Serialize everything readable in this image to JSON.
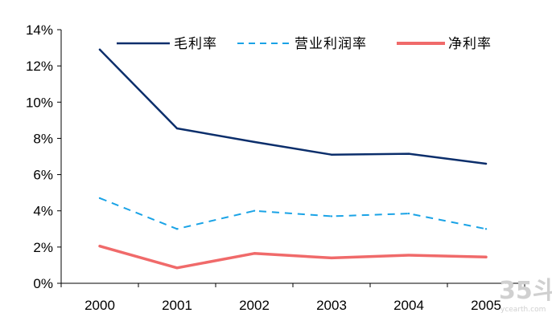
{
  "chart_data": {
    "type": "line",
    "title": "",
    "xlabel": "",
    "ylabel": "",
    "categories": [
      "2000",
      "2001",
      "2002",
      "2003",
      "2004",
      "2005"
    ],
    "ylim": [
      0,
      14
    ],
    "yticks": [
      0,
      2,
      4,
      6,
      8,
      10,
      12,
      14
    ],
    "ytick_labels": [
      "0%",
      "2%",
      "4%",
      "6%",
      "8%",
      "10%",
      "12%",
      "14%"
    ],
    "grid": false,
    "legend_position": "top",
    "series": [
      {
        "name": "毛利率",
        "values": [
          12.9,
          8.55,
          7.8,
          7.1,
          7.15,
          6.6
        ],
        "color": "#0b2e6b",
        "style": "solid"
      },
      {
        "name": "营业利润率",
        "values": [
          4.7,
          3.0,
          4.0,
          3.7,
          3.85,
          3.0
        ],
        "color": "#1aa3e6",
        "style": "dashed"
      },
      {
        "name": "净利率",
        "values": [
          2.05,
          0.85,
          1.65,
          1.4,
          1.55,
          1.45
        ],
        "color": "#f06a6a",
        "style": "solid"
      }
    ]
  },
  "watermark": {
    "main": "35斗",
    "sub": "ycearth.com"
  }
}
